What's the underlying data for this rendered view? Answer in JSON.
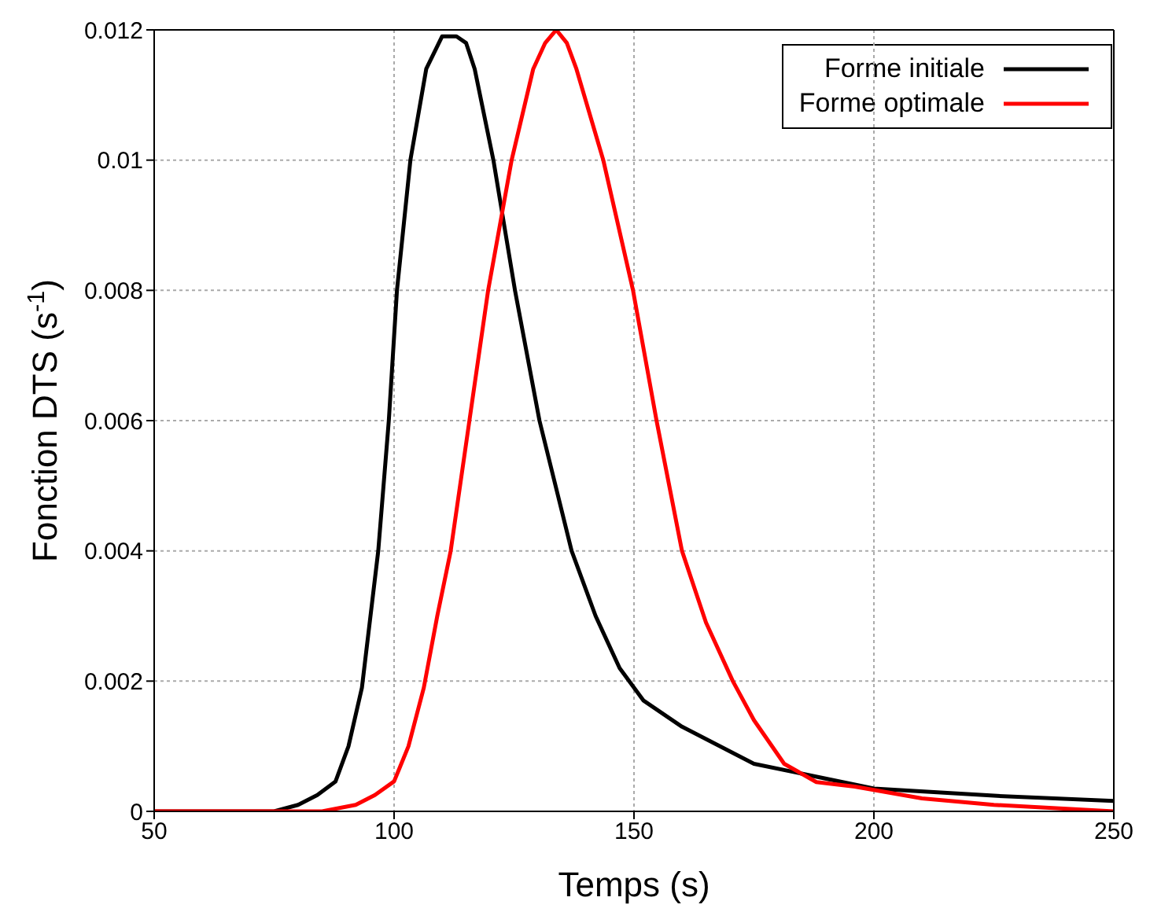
{
  "chart_data": {
    "type": "line",
    "xlabel": "Temps (s)",
    "ylabel": "Fonction DTS (s$^{-1}$)",
    "xlim": [
      50,
      250
    ],
    "xticks": [
      50,
      100,
      150,
      200,
      250
    ],
    "ylim": [
      0,
      0.012
    ],
    "yticks": [
      0,
      0.002,
      0.004,
      0.006,
      0.008,
      0.01,
      0.012
    ],
    "grid": true,
    "legend": "top right",
    "marker": "none",
    "line_style": "solid",
    "series": [
      {
        "name": "Forme initiale",
        "color": "#000000",
        "x": [
          50,
          75,
          80,
          84,
          87.8,
          90.5,
          93.3,
          96.7,
          98.9,
          100.6,
          103.4,
          106.7,
          110,
          113,
          115,
          116.8,
          120.7,
          125.2,
          130.3,
          137,
          142,
          147,
          152,
          160,
          175,
          200,
          225,
          250
        ],
        "values": [
          0,
          0,
          0.0001,
          0.00025,
          0.00046,
          0.001,
          0.0019,
          0.004,
          0.006,
          0.008,
          0.01,
          0.0114,
          0.0119,
          0.0119,
          0.0118,
          0.0114,
          0.01,
          0.008,
          0.006,
          0.004,
          0.003,
          0.0022,
          0.0017,
          0.0013,
          0.00073,
          0.00035,
          0.00024,
          0.00016
        ]
      },
      {
        "name": "Forme optimale",
        "color": "#ff0000",
        "x": [
          50,
          85,
          92,
          96,
          100,
          103,
          106.2,
          109,
          111.8,
          115.7,
          119.6,
          124.5,
          129,
          131.5,
          133.8,
          136,
          138,
          143.6,
          149.8,
          154.7,
          160,
          165,
          170.6,
          175,
          181.3,
          188,
          196,
          210,
          225,
          250
        ],
        "values": [
          0,
          0,
          0.0001,
          0.00025,
          0.00046,
          0.001,
          0.0019,
          0.003,
          0.004,
          0.006,
          0.008,
          0.01,
          0.0114,
          0.0118,
          0.012,
          0.0118,
          0.0114,
          0.01,
          0.008,
          0.006,
          0.004,
          0.0029,
          0.002,
          0.0014,
          0.00073,
          0.00045,
          0.00038,
          0.0002,
          0.0001,
          0
        ]
      }
    ]
  }
}
